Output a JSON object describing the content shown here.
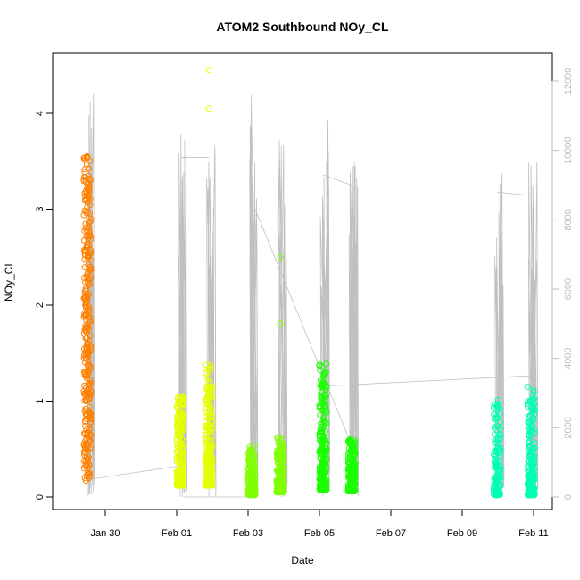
{
  "chart_data": {
    "type": "scatter",
    "title": "ATOM2 Southbound NOy_CL",
    "xlabel": "Date",
    "ylabel": "NOy_CL",
    "x_ticks": [
      "Jan 30",
      "Feb 01",
      "Feb 03",
      "Feb 05",
      "Feb 07",
      "Feb 09",
      "Feb 11"
    ],
    "y_ticks": [
      "0",
      "1",
      "2",
      "3",
      "4"
    ],
    "y2_ticks": [
      "0",
      "2000",
      "4000",
      "6000",
      "8000",
      "10000",
      "12000"
    ],
    "xlim": [
      "2017-01-29",
      "2017-02-11"
    ],
    "ylim": [
      0,
      4.6
    ],
    "y2lim": [
      0,
      12600
    ],
    "grid": false,
    "series": [
      {
        "color": "#ff8000",
        "x": [
          "2017-01-29",
          "2017-01-29"
        ],
        "y": [
          0.17,
          3.55
        ]
      },
      {
        "color": "#e6ff00",
        "x": [
          "2017-02-01",
          "2017-02-01"
        ],
        "y": [
          0.12,
          1.05
        ]
      },
      {
        "color": "#e6ff00",
        "x": [
          "2017-02-01",
          "2017-02-01"
        ],
        "y": [
          0.12,
          1.38
        ]
      },
      {
        "color": "#e6ff00",
        "x": [
          "2017-02-01",
          "2017-02-01"
        ],
        "y": [
          4.05,
          4.45
        ]
      },
      {
        "color": "#80ff00",
        "x": [
          "2017-02-03",
          "2017-02-03"
        ],
        "y": [
          0.02,
          0.54
        ]
      },
      {
        "color": "#80ff00",
        "x": [
          "2017-02-03",
          "2017-02-03"
        ],
        "y": [
          0.05,
          0.62
        ]
      },
      {
        "color": "#80ff00",
        "x": [
          "2017-02-03",
          "2017-02-03"
        ],
        "y": [
          1.81,
          2.5
        ]
      },
      {
        "color": "#1aff00",
        "x": [
          "2017-02-05",
          "2017-02-05"
        ],
        "y": [
          0.07,
          1.39
        ]
      },
      {
        "color": "#1aff00",
        "x": [
          "2017-02-05",
          "2017-02-05"
        ],
        "y": [
          0.06,
          0.6
        ]
      },
      {
        "color": "#00ffb3",
        "x": [
          "2017-02-09",
          "2017-02-09"
        ],
        "y": [
          0.02,
          1.01
        ]
      },
      {
        "color": "#00ffb3",
        "x": [
          "2017-02-10",
          "2017-02-10"
        ],
        "y": [
          0.02,
          1.15
        ]
      }
    ],
    "altitude_color": "#c0c0c0"
  }
}
